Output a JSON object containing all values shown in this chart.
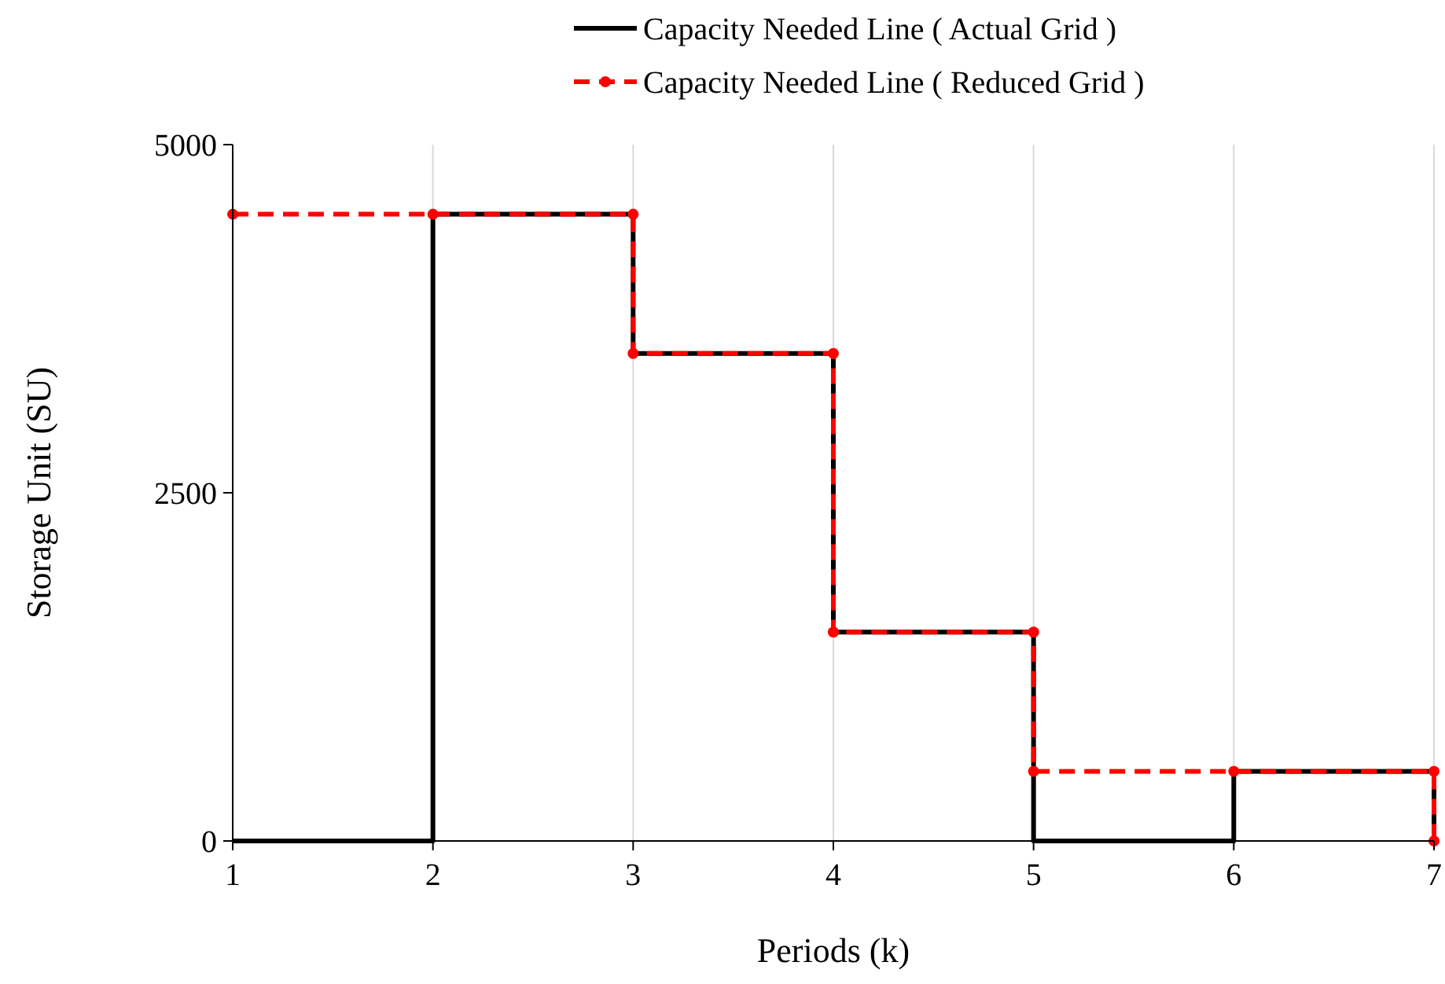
{
  "chart_data": {
    "type": "line",
    "xlabel": "Periods (k)",
    "ylabel": "Storage Unit (SU)",
    "xlim": [
      1,
      7
    ],
    "ylim": [
      0,
      5000
    ],
    "xticks": [
      1,
      2,
      3,
      4,
      5,
      6,
      7
    ],
    "yticks": [
      0,
      2500,
      5000
    ],
    "grid": "x",
    "legend": "top",
    "series": [
      {
        "name": "Capacity Needed Line ( Actual Grid )",
        "color": "#000000",
        "line_style": "solid",
        "marker": "none",
        "x": [
          1,
          2,
          2,
          3,
          3,
          4,
          4,
          5,
          5,
          6,
          6,
          7,
          7
        ],
        "values": [
          0,
          0,
          4500,
          4500,
          3500,
          3500,
          1500,
          1500,
          0,
          0,
          500,
          500,
          0
        ]
      },
      {
        "name": "Capacity Needed Line ( Reduced Grid )",
        "color": "#ff0000",
        "line_style": "dashed",
        "marker": "circle",
        "x": [
          1,
          2,
          3,
          3,
          4,
          4,
          5,
          5,
          6,
          7,
          7
        ],
        "values": [
          4500,
          4500,
          4500,
          3500,
          3500,
          1500,
          1500,
          500,
          500,
          500,
          0
        ]
      }
    ]
  }
}
